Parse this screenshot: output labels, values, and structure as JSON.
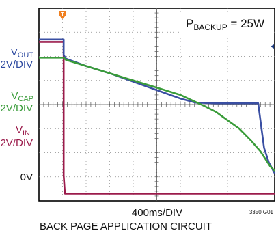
{
  "chart_data": {
    "type": "line",
    "annotation": {
      "prefix": "P",
      "subscript": "BACKUP",
      "suffix": " = 25W"
    },
    "channels": [
      {
        "key": "vout",
        "name": "V",
        "sub": "OUT",
        "scale": "2V/DIV",
        "color": "#3a4fa3"
      },
      {
        "key": "vcap",
        "name": "V",
        "sub": "CAP",
        "scale": "2V/DIV",
        "color": "#3a9c3a"
      },
      {
        "key": "vin",
        "name": "V",
        "sub": "IN",
        "scale": "2V/DIV",
        "color": "#9b1b4b"
      }
    ],
    "zero_label": "0V",
    "xlabel": "400ms/DIV",
    "figure_id": "3350 G01",
    "caption": "BACK PAGE APPLICATION CIRCUIT",
    "grid": true,
    "xlim": [
      0,
      10
    ],
    "ylim": [
      0,
      8
    ],
    "series": [
      {
        "key": "vin",
        "x": [
          0,
          1.05,
          1.05,
          1.1,
          10
        ],
        "y": [
          6.6,
          6.6,
          1.05,
          0.3,
          0.3
        ]
      },
      {
        "key": "vout",
        "x": [
          0,
          1.05,
          1.05,
          1.15,
          2,
          3,
          4,
          5,
          6,
          6.65,
          7.5,
          8.5,
          9.3,
          9.55,
          9.75,
          10
        ],
        "y": [
          6.7,
          6.7,
          6.05,
          5.9,
          5.6,
          5.3,
          4.95,
          4.6,
          4.25,
          4.08,
          4.05,
          4.05,
          4.05,
          2.2,
          1.6,
          1.15
        ]
      },
      {
        "key": "vcap",
        "x": [
          0,
          1.05,
          1.15,
          2,
          3,
          4,
          5,
          6,
          7,
          7.5,
          8,
          8.5,
          9,
          9.4,
          9.6,
          9.8,
          10
        ],
        "y": [
          5.95,
          5.95,
          5.85,
          5.6,
          5.3,
          5.0,
          4.7,
          4.4,
          3.95,
          3.7,
          3.35,
          3.0,
          2.5,
          2.05,
          1.75,
          1.45,
          1.25
        ]
      }
    ]
  }
}
